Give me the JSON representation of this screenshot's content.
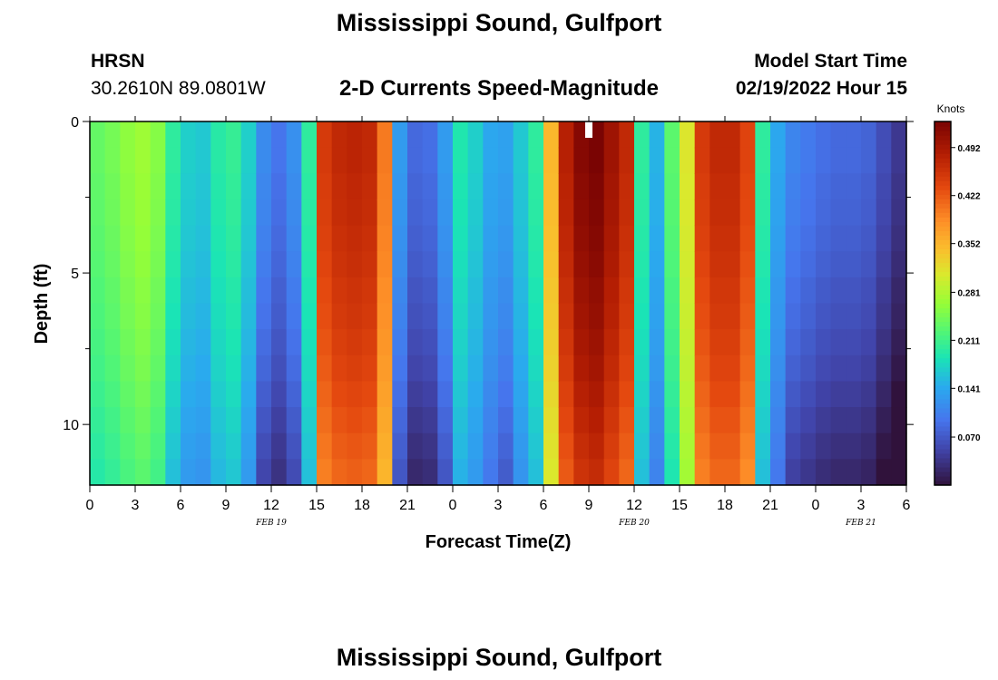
{
  "page_title": "Mississippi Sound, Gulfport",
  "page_title_repeat": "Mississippi Sound, Gulfport",
  "station": {
    "code": "HRSN",
    "coords": "30.2610N  89.0801W"
  },
  "plot_subtitle": "2-D Currents Speed-Magnitude",
  "model_start": {
    "label": "Model Start Time",
    "value": "02/19/2022 Hour 15"
  },
  "chart_data": {
    "type": "heatmap",
    "title": "2-D Currents Speed-Magnitude",
    "xlabel": "Forecast Time(Z)",
    "ylabel": "Depth (ft)",
    "xlim": [
      0,
      54
    ],
    "ylim": [
      0,
      12
    ],
    "y_inverted": true,
    "x_ticks": [
      {
        "v": 0,
        "label": "0"
      },
      {
        "v": 3,
        "label": "3"
      },
      {
        "v": 6,
        "label": "6"
      },
      {
        "v": 9,
        "label": "9"
      },
      {
        "v": 12,
        "label": "12"
      },
      {
        "v": 15,
        "label": "15"
      },
      {
        "v": 18,
        "label": "18"
      },
      {
        "v": 21,
        "label": "21"
      },
      {
        "v": 24,
        "label": "0"
      },
      {
        "v": 27,
        "label": "3"
      },
      {
        "v": 30,
        "label": "6"
      },
      {
        "v": 33,
        "label": "9"
      },
      {
        "v": 36,
        "label": "12"
      },
      {
        "v": 39,
        "label": "15"
      },
      {
        "v": 42,
        "label": "18"
      },
      {
        "v": 45,
        "label": "21"
      },
      {
        "v": 48,
        "label": "0"
      },
      {
        "v": 51,
        "label": "3"
      },
      {
        "v": 54,
        "label": "6"
      }
    ],
    "y_ticks": [
      {
        "v": 0,
        "label": "0"
      },
      {
        "v": 5,
        "label": "5"
      },
      {
        "v": 10,
        "label": "10"
      }
    ],
    "date_labels": [
      {
        "x": 12,
        "label": "FEB 19"
      },
      {
        "x": 36,
        "label": "FEB 20"
      },
      {
        "x": 51,
        "label": "FEB 21"
      }
    ],
    "colorbar": {
      "title": "Knots",
      "min": 0.0,
      "max": 0.53,
      "ticks": [
        "0.070",
        "0.141",
        "0.211",
        "0.281",
        "0.352",
        "0.422",
        "0.492"
      ],
      "tick_values": [
        0.07,
        0.141,
        0.211,
        0.281,
        0.352,
        0.422,
        0.492
      ],
      "colormap": "turbo"
    },
    "surface_speed_by_hour": [
      0.235,
      0.245,
      0.26,
      0.27,
      0.255,
      0.2,
      0.17,
      0.165,
      0.195,
      0.205,
      0.17,
      0.115,
      0.095,
      0.12,
      0.2,
      0.45,
      0.47,
      0.475,
      0.47,
      0.4,
      0.13,
      0.085,
      0.09,
      0.13,
      0.19,
      0.17,
      0.14,
      0.135,
      0.165,
      0.2,
      0.35,
      0.48,
      0.52,
      0.53,
      0.5,
      0.47,
      0.2,
      0.15,
      0.23,
      0.31,
      0.45,
      0.47,
      0.47,
      0.44,
      0.2,
      0.14,
      0.11,
      0.1,
      0.09,
      0.085,
      0.085,
      0.08,
      0.06,
      0.04
    ],
    "depth_factor_by_row": [
      1.0,
      1.0,
      0.98,
      0.97,
      0.95,
      0.93,
      0.9,
      0.88,
      0.85,
      0.82,
      0.78,
      0.74,
      0.7,
      0.66
    ],
    "missing_cells": [
      {
        "x": 33,
        "depth": 0
      }
    ]
  }
}
